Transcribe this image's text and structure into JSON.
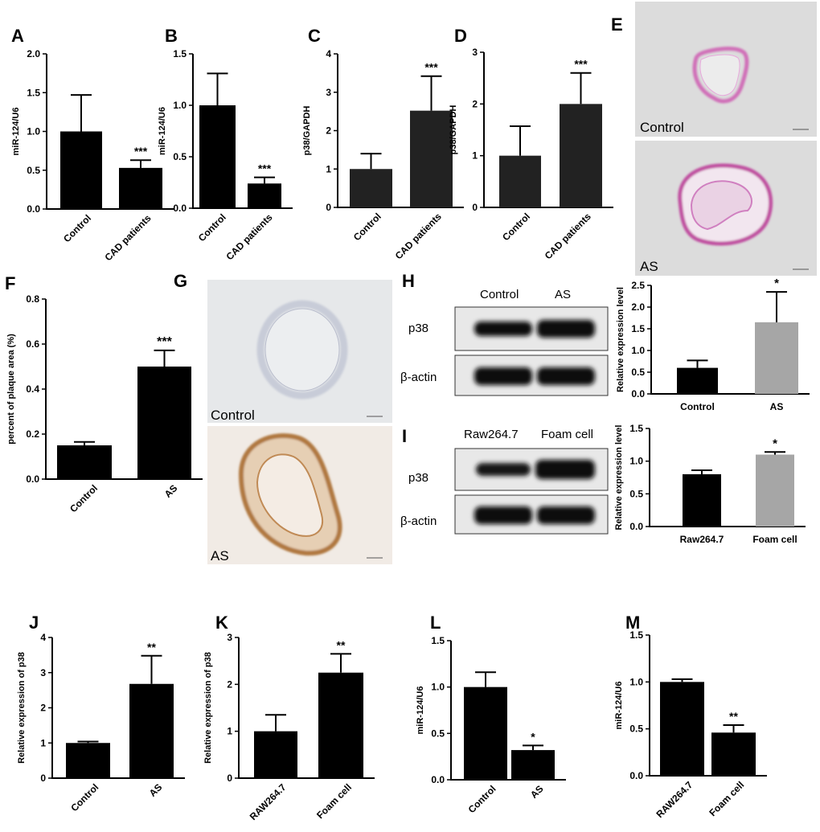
{
  "panels": [
    {
      "id": "A",
      "label": "A"
    },
    {
      "id": "B",
      "label": "B"
    },
    {
      "id": "C",
      "label": "C"
    },
    {
      "id": "D",
      "label": "D"
    },
    {
      "id": "E",
      "label": "E"
    },
    {
      "id": "F",
      "label": "F"
    },
    {
      "id": "G",
      "label": "G"
    },
    {
      "id": "H",
      "label": "H"
    },
    {
      "id": "I",
      "label": "I"
    },
    {
      "id": "J",
      "label": "J"
    },
    {
      "id": "K",
      "label": "K"
    },
    {
      "id": "L",
      "label": "L"
    },
    {
      "id": "M",
      "label": "M"
    }
  ],
  "micrographs": {
    "E": {
      "top_label": "Control",
      "bottom_label": "AS",
      "stain_color": "#d070b8",
      "background": "#dcdcdc"
    },
    "G": {
      "top_label": "Control",
      "bottom_label": "AS",
      "stain_color": "#b07840",
      "background": "#e6e8ea"
    }
  },
  "blots": {
    "H": {
      "lanes": [
        "Control",
        "AS"
      ],
      "rows": [
        "p38",
        "β-actin"
      ]
    },
    "I": {
      "lanes": [
        "Raw264.7",
        "Foam cell"
      ],
      "rows": [
        "p38",
        "β-actin"
      ]
    }
  },
  "chart_data": [
    {
      "id": "A",
      "type": "bar",
      "categories": [
        "Control",
        "CAD patients"
      ],
      "values": [
        1.0,
        0.53
      ],
      "errors": [
        0.47,
        0.1
      ],
      "ylabel": "miR-124/U6",
      "ylim": [
        0,
        2.0
      ],
      "yticks": [
        "0.0",
        "0.5",
        "1.0",
        "1.5",
        "2.0"
      ],
      "significance": [
        "",
        "***"
      ],
      "colors": [
        "#000000",
        "#000000"
      ],
      "rotate_x": true
    },
    {
      "id": "B",
      "type": "bar",
      "categories": [
        "Control",
        "CAD patients"
      ],
      "values": [
        1.0,
        0.24
      ],
      "errors": [
        0.31,
        0.06
      ],
      "ylabel": "miR-124/U6",
      "ylim": [
        0,
        1.5
      ],
      "yticks": [
        "0.0",
        "0.5",
        "1.0",
        "1.5"
      ],
      "significance": [
        "",
        "***"
      ],
      "colors": [
        "#000000",
        "#000000"
      ],
      "rotate_x": true
    },
    {
      "id": "C",
      "type": "bar",
      "categories": [
        "Control",
        "CAD patients"
      ],
      "values": [
        1.0,
        2.52
      ],
      "errors": [
        0.4,
        0.9
      ],
      "ylabel": "p38/GAPDH",
      "ylim": [
        0,
        4
      ],
      "yticks": [
        "0",
        "1",
        "2",
        "3",
        "4"
      ],
      "significance": [
        "",
        "***"
      ],
      "colors": [
        "#222222",
        "#222222"
      ],
      "rotate_x": true
    },
    {
      "id": "D",
      "type": "bar",
      "categories": [
        "Control",
        "CAD patients"
      ],
      "values": [
        1.0,
        2.0
      ],
      "errors": [
        0.57,
        0.6
      ],
      "ylabel": "p38/GAPDH",
      "ylim": [
        0,
        3
      ],
      "yticks": [
        "0",
        "1",
        "2",
        "3"
      ],
      "significance": [
        "",
        "***"
      ],
      "colors": [
        "#222222",
        "#222222"
      ],
      "rotate_x": true
    },
    {
      "id": "F",
      "type": "bar",
      "categories": [
        "Control",
        "AS"
      ],
      "values": [
        0.15,
        0.5
      ],
      "errors": [
        0.015,
        0.072
      ],
      "ylabel": "percent of plaque area (%)",
      "ylim": [
        0,
        0.8
      ],
      "yticks": [
        "0.0",
        "0.2",
        "0.4",
        "0.6",
        "0.8"
      ],
      "significance": [
        "",
        "***"
      ],
      "colors": [
        "#000000",
        "#000000"
      ],
      "rotate_x": true
    },
    {
      "id": "H",
      "type": "bar",
      "categories": [
        "Control",
        "AS"
      ],
      "values": [
        0.6,
        1.65
      ],
      "errors": [
        0.17,
        0.7
      ],
      "ylabel": "Relative expression level",
      "ylim": [
        0,
        2.5
      ],
      "yticks": [
        "0.0",
        "0.5",
        "1.0",
        "1.5",
        "2.0",
        "2.5"
      ],
      "significance": [
        "",
        "*"
      ],
      "colors": [
        "#000000",
        "#a6a6a6"
      ],
      "rotate_x": false
    },
    {
      "id": "I",
      "type": "bar",
      "categories": [
        "Raw264.7",
        "Foam cell"
      ],
      "values": [
        0.8,
        1.1
      ],
      "errors": [
        0.06,
        0.04
      ],
      "ylabel": "Relative expression level",
      "ylim": [
        0,
        1.5
      ],
      "yticks": [
        "0.0",
        "0.5",
        "1.0",
        "1.5"
      ],
      "significance": [
        "",
        "*"
      ],
      "colors": [
        "#000000",
        "#a6a6a6"
      ],
      "rotate_x": false
    },
    {
      "id": "J",
      "type": "bar",
      "categories": [
        "Control",
        "AS"
      ],
      "values": [
        1.0,
        2.68
      ],
      "errors": [
        0.04,
        0.8
      ],
      "ylabel": "Relative expression of p38",
      "ylim": [
        0,
        4
      ],
      "yticks": [
        "0",
        "1",
        "2",
        "3",
        "4"
      ],
      "significance": [
        "",
        "**"
      ],
      "colors": [
        "#000000",
        "#000000"
      ],
      "rotate_x": true
    },
    {
      "id": "K",
      "type": "bar",
      "categories": [
        "RAW264.7",
        "Foam cell"
      ],
      "values": [
        1.0,
        2.25
      ],
      "errors": [
        0.35,
        0.4
      ],
      "ylabel": "Relative expression of p38",
      "ylim": [
        0,
        3
      ],
      "yticks": [
        "0",
        "1",
        "2",
        "3"
      ],
      "significance": [
        "",
        "**"
      ],
      "colors": [
        "#000000",
        "#000000"
      ],
      "rotate_x": true
    },
    {
      "id": "L",
      "type": "bar",
      "categories": [
        "Control",
        "AS"
      ],
      "values": [
        1.0,
        0.32
      ],
      "errors": [
        0.16,
        0.05
      ],
      "ylabel": "miR-124/U6",
      "ylim": [
        0,
        1.5
      ],
      "yticks": [
        "0.0",
        "0.5",
        "1.0",
        "1.5"
      ],
      "significance": [
        "",
        "*"
      ],
      "colors": [
        "#000000",
        "#000000"
      ],
      "rotate_x": true
    },
    {
      "id": "M",
      "type": "bar",
      "categories": [
        "RAW264.7",
        "Foam cell"
      ],
      "values": [
        1.0,
        0.46
      ],
      "errors": [
        0.03,
        0.08
      ],
      "ylabel": "miR-124/U6",
      "ylim": [
        0,
        1.5
      ],
      "yticks": [
        "0.0",
        "0.5",
        "1.0",
        "1.5"
      ],
      "significance": [
        "",
        "**"
      ],
      "colors": [
        "#000000",
        "#000000"
      ],
      "rotate_x": true
    }
  ]
}
